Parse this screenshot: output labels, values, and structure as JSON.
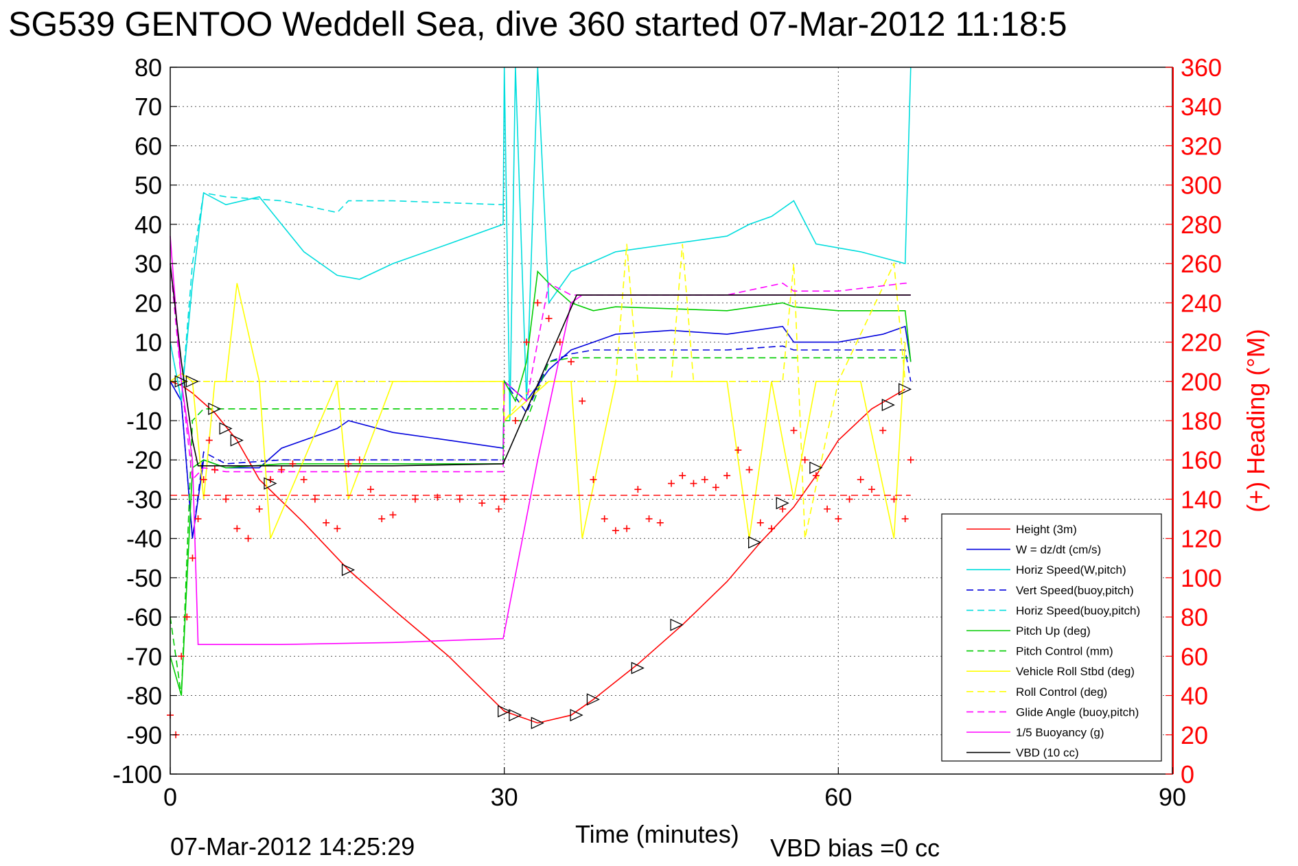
{
  "chart_data": {
    "type": "line",
    "title": "SG539 GENTOO Weddell Sea, dive 360 started 07-Mar-2012 11:18:5",
    "xlabel": "Time (minutes)",
    "ylabel": "",
    "y2label": "(+) Heading (°M)",
    "footer_left": "07-Mar-2012 14:25:29",
    "footer_right": "VBD bias =0 cc",
    "xlim": [
      0,
      90
    ],
    "ylim": [
      -100,
      80
    ],
    "y2lim": [
      0,
      360
    ],
    "xticks": [
      "0",
      "30",
      "60",
      "90"
    ],
    "yticks": [
      "80",
      "70",
      "60",
      "50",
      "40",
      "30",
      "20",
      "10",
      "0",
      "-10",
      "-20",
      "-30",
      "-40",
      "-50",
      "-60",
      "-70",
      "-80",
      "-90",
      "-100"
    ],
    "y2ticks": [
      "360",
      "340",
      "320",
      "300",
      "280",
      "260",
      "240",
      "220",
      "200",
      "180",
      "160",
      "140",
      "120",
      "100",
      "80",
      "60",
      "40",
      "20",
      "0"
    ],
    "grid": true,
    "legend_position": "bottom-right",
    "series": [
      {
        "name": "Height (3m)",
        "color": "#ff0000",
        "style": "solid",
        "axis": "left",
        "x": [
          0,
          1,
          2,
          4,
          6,
          8,
          12,
          16,
          20,
          25,
          30,
          33,
          36,
          38,
          42,
          46,
          50,
          53,
          56,
          58,
          60,
          63,
          66
        ],
        "y": [
          0,
          -1,
          -3,
          -8,
          -15,
          -25,
          -36,
          -48,
          -58,
          -70,
          -84,
          -87,
          -85,
          -81,
          -72,
          -62,
          -51,
          -41,
          -32,
          -24,
          -15,
          -7,
          -2
        ]
      },
      {
        "name": "W = dz/dt (cm/s)",
        "color": "#0000dd",
        "style": "solid",
        "axis": "left",
        "x": [
          0,
          1,
          2,
          3,
          5,
          8,
          10,
          13,
          15,
          16,
          20,
          25,
          29.9,
          30,
          32,
          34,
          36,
          38,
          40,
          45,
          50,
          55,
          56,
          60,
          64,
          66,
          66.5
        ],
        "y": [
          0,
          -5,
          -40,
          -20,
          -22,
          -22,
          -17,
          -14,
          -12,
          -10,
          -13,
          -15,
          -17,
          0,
          -5,
          3,
          8,
          10,
          12,
          13,
          12,
          14,
          10,
          10,
          12,
          14,
          5
        ]
      },
      {
        "name": "Horiz Speed(W,pitch)",
        "color": "#00dddd",
        "style": "solid",
        "axis": "left",
        "x": [
          0,
          1,
          2,
          3,
          5,
          8,
          10,
          12,
          15,
          17,
          20,
          25,
          29.9,
          30,
          30.5,
          31,
          32,
          33,
          34,
          36,
          40,
          45,
          50,
          52,
          54,
          56,
          58,
          62,
          66,
          66.5
        ],
        "y": [
          10,
          -5,
          25,
          48,
          45,
          47,
          40,
          33,
          27,
          26,
          30,
          35,
          40,
          80,
          -10,
          80,
          -5,
          80,
          20,
          28,
          33,
          35,
          37,
          40,
          42,
          46,
          35,
          33,
          30,
          80
        ]
      },
      {
        "name": "Vert Speed(buoy,pitch)",
        "color": "#0000dd",
        "style": "dash",
        "axis": "left",
        "x": [
          0,
          1,
          2,
          3,
          5,
          10,
          20,
          29.9,
          30,
          32,
          34,
          36,
          38,
          40,
          50,
          55,
          56,
          60,
          66,
          66.5
        ],
        "y": [
          0,
          -5,
          -40,
          -18,
          -21,
          -20,
          -20,
          -20,
          0,
          -8,
          5,
          7,
          8,
          8,
          8,
          9,
          8,
          8,
          8,
          0
        ]
      },
      {
        "name": "Horiz Speed(buoy,pitch)",
        "color": "#00dddd",
        "style": "dash",
        "axis": "left",
        "x": [
          0,
          1,
          2,
          3,
          5,
          10,
          15,
          16,
          20,
          29.9,
          30
        ],
        "y": [
          10,
          -5,
          30,
          48,
          47,
          46,
          43,
          46,
          46,
          45,
          45
        ]
      },
      {
        "name": "Pitch Up (deg)",
        "color": "#00cc00",
        "style": "solid",
        "axis": "left",
        "x": [
          0,
          1,
          2,
          3,
          5,
          10,
          20,
          29.9,
          30,
          31,
          32,
          33,
          34,
          36,
          38,
          40,
          50,
          55,
          56,
          60,
          66,
          66.5
        ],
        "y": [
          -70,
          -80,
          -22,
          -20,
          -22,
          -21,
          -21,
          -21,
          0,
          -5,
          5,
          28,
          25,
          20,
          18,
          19,
          18,
          20,
          19,
          18,
          18,
          5
        ]
      },
      {
        "name": "Pitch Control (mm)",
        "color": "#00cc00",
        "style": "dash",
        "axis": "left",
        "x": [
          0,
          1,
          2,
          3,
          20,
          29.9,
          30,
          32,
          34,
          36,
          40,
          66,
          66.5
        ],
        "y": [
          -60,
          -80,
          -10,
          -7,
          -7,
          -7,
          -10,
          -10,
          5,
          6,
          6,
          6,
          6
        ]
      },
      {
        "name": "Vehicle Roll Stbd (deg)",
        "color": "#ffff00",
        "style": "solid",
        "axis": "left",
        "x": [
          0,
          1,
          2,
          3,
          4,
          5,
          6,
          8,
          9,
          15,
          16,
          20,
          25,
          29.9,
          30,
          32,
          34,
          36,
          37,
          40,
          45,
          50,
          52,
          54,
          56,
          58,
          62,
          65,
          66
        ],
        "y": [
          0,
          2,
          0,
          -30,
          0,
          0,
          25,
          0,
          -40,
          0,
          -30,
          0,
          0,
          0,
          -10,
          -5,
          0,
          0,
          -40,
          0,
          0,
          0,
          -40,
          0,
          -30,
          0,
          0,
          -40,
          10
        ]
      },
      {
        "name": "Roll Control (deg)",
        "color": "#ffff00",
        "style": "dash",
        "axis": "left",
        "x": [
          0,
          3,
          5,
          10,
          20,
          29.9,
          30,
          32,
          34,
          40,
          41,
          42,
          45,
          46,
          47,
          55,
          56,
          57,
          60,
          65,
          66
        ],
        "y": [
          0,
          0,
          0,
          0,
          0,
          0,
          -10,
          -3,
          0,
          0,
          35,
          0,
          0,
          35,
          0,
          0,
          30,
          -40,
          0,
          30,
          0
        ]
      },
      {
        "name": "Glide Angle (buoy,pitch)",
        "color": "#ff00ff",
        "style": "dash",
        "axis": "left",
        "x": [
          0,
          1,
          2,
          3,
          5,
          10,
          20,
          29.9,
          30,
          32,
          34,
          36,
          40,
          50,
          55,
          56,
          60,
          66,
          66.5
        ],
        "y": [
          30,
          0,
          -25,
          -22,
          -23,
          -23,
          -23,
          -23,
          0,
          -5,
          25,
          22,
          22,
          22,
          25,
          23,
          23,
          25,
          25
        ]
      },
      {
        "name": "1/5 Buoyancy (g)",
        "color": "#ff00ff",
        "style": "solid",
        "axis": "left",
        "x": [
          0,
          1,
          2,
          2.5,
          10,
          20,
          29.9,
          33,
          36,
          37,
          40,
          66,
          66.5
        ],
        "y": [
          37,
          0,
          -20,
          -67,
          -67,
          -66.5,
          -65.5,
          -20,
          20,
          22,
          22,
          22,
          22
        ]
      },
      {
        "name": "VBD (10 cc)",
        "color": "#000000",
        "style": "solid",
        "axis": "left",
        "x": [
          0,
          1,
          2,
          2.5,
          20,
          29.9,
          36.5,
          37,
          55,
          55.2,
          66,
          66.5
        ],
        "y": [
          30,
          5,
          -15,
          -21.5,
          -21.5,
          -21,
          22,
          22,
          22,
          22,
          22,
          22
        ]
      }
    ],
    "heading": {
      "name": "Heading",
      "color": "#ff0000",
      "marker": "+",
      "axis": "right",
      "x": [
        0,
        0.5,
        1,
        1.5,
        2,
        2.5,
        3,
        3.5,
        4,
        5,
        6,
        7,
        8,
        9,
        10,
        11,
        12,
        13,
        14,
        15,
        16,
        17,
        18,
        19,
        20,
        22,
        24,
        26,
        28,
        29.5,
        30,
        31,
        32,
        33,
        34,
        35,
        36,
        37,
        38,
        39,
        40,
        41,
        42,
        43,
        44,
        45,
        46,
        47,
        48,
        49,
        50,
        51,
        52,
        53,
        54,
        55,
        56,
        57,
        58,
        59,
        60,
        61,
        62,
        63,
        64,
        65,
        66,
        66.5
      ],
      "y": [
        30,
        20,
        60,
        80,
        110,
        130,
        150,
        170,
        155,
        140,
        125,
        120,
        135,
        150,
        155,
        158,
        150,
        140,
        128,
        125,
        158,
        160,
        145,
        130,
        132,
        140,
        141,
        140,
        138,
        135,
        140,
        180,
        220,
        240,
        232,
        220,
        210,
        190,
        150,
        130,
        124,
        125,
        145,
        130,
        128,
        148,
        152,
        148,
        150,
        146,
        152,
        165,
        155,
        128,
        125,
        135,
        175,
        160,
        152,
        135,
        130,
        140,
        150,
        145,
        175,
        140,
        130,
        160
      ]
    },
    "heading_reference": {
      "color": "#ff0000",
      "style": "dash",
      "axis": "right",
      "value": 142
    },
    "triangle_markers": {
      "color": "#000000",
      "axis": "left",
      "x": [
        1,
        2,
        4,
        5,
        6,
        9,
        16,
        30,
        31,
        33,
        36.5,
        38,
        42,
        45.5,
        52.5,
        55,
        58,
        64.5,
        66
      ],
      "y": [
        0,
        0,
        -7,
        -12,
        -15,
        -26,
        -48,
        -84,
        -85,
        -87,
        -85,
        -81,
        -73,
        -62,
        -41,
        -31,
        -22,
        -6,
        -2
      ]
    }
  }
}
